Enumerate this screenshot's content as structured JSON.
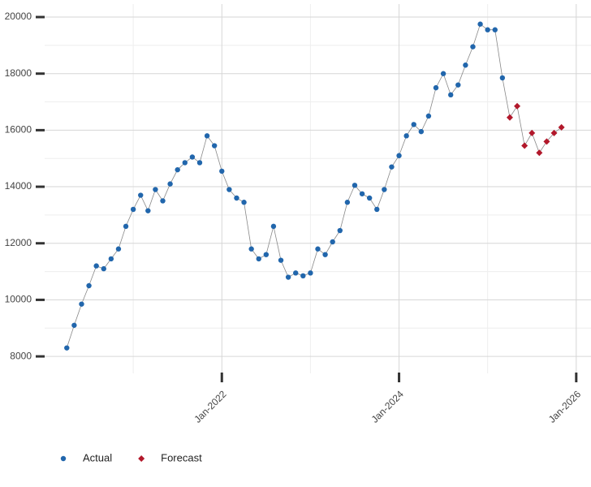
{
  "chart_data": {
    "type": "line",
    "xlim": [
      "2020-01",
      "2026-03"
    ],
    "ylim": [
      7400,
      20460
    ],
    "yticks": [
      8000,
      10000,
      12000,
      14000,
      16000,
      18000,
      20000
    ],
    "xticks": [
      {
        "value": "2022-01",
        "label": "Jan-2022"
      },
      {
        "value": "2024-01",
        "label": "Jan-2024"
      },
      {
        "value": "2026-01",
        "label": "Jan-2026"
      }
    ],
    "grid": true,
    "legend": "bottom-left",
    "line_color": "#888888",
    "series": [
      {
        "name": "Actual",
        "color": "#2166ac",
        "marker": "circle",
        "x": [
          "2020-04",
          "2020-05",
          "2020-06",
          "2020-07",
          "2020-08",
          "2020-09",
          "2020-10",
          "2020-11",
          "2020-12",
          "2021-01",
          "2021-02",
          "2021-03",
          "2021-04",
          "2021-05",
          "2021-06",
          "2021-07",
          "2021-08",
          "2021-09",
          "2021-10",
          "2021-11",
          "2021-12",
          "2022-01",
          "2022-02",
          "2022-03",
          "2022-04",
          "2022-05",
          "2022-06",
          "2022-07",
          "2022-08",
          "2022-09",
          "2022-10",
          "2022-11",
          "2022-12",
          "2023-01",
          "2023-02",
          "2023-03",
          "2023-04",
          "2023-05",
          "2023-06",
          "2023-07",
          "2023-08",
          "2023-09",
          "2023-10",
          "2023-11",
          "2023-12",
          "2024-01",
          "2024-02",
          "2024-03",
          "2024-04",
          "2024-05",
          "2024-06",
          "2024-07",
          "2024-08",
          "2024-09",
          "2024-10",
          "2024-11",
          "2024-12",
          "2025-01",
          "2025-02",
          "2025-03"
        ],
        "values": [
          8300,
          9100,
          9850,
          10500,
          11200,
          11100,
          11450,
          11800,
          12600,
          13200,
          13700,
          13150,
          13900,
          13500,
          14100,
          14600,
          14850,
          15050,
          14850,
          15800,
          15450,
          14550,
          13900,
          13600,
          13450,
          11800,
          11450,
          11600,
          12600,
          11400,
          10800,
          10950,
          10850,
          10950,
          11800,
          11600,
          12050,
          12450,
          13450,
          14050,
          13750,
          13600,
          13200,
          13900,
          14700,
          15100,
          15800,
          16200,
          15950,
          16500,
          17500,
          18000,
          17250,
          17600,
          18300,
          18950,
          19750,
          19550,
          19550,
          17850
        ]
      },
      {
        "name": "Forecast",
        "color": "#b2182b",
        "marker": "diamond",
        "x": [
          "2025-04",
          "2025-05",
          "2025-06",
          "2025-07",
          "2025-08",
          "2025-09",
          "2025-10",
          "2025-11"
        ],
        "values": [
          16450,
          16850,
          15450,
          15900,
          15200,
          15600,
          15900,
          16100
        ]
      }
    ]
  }
}
